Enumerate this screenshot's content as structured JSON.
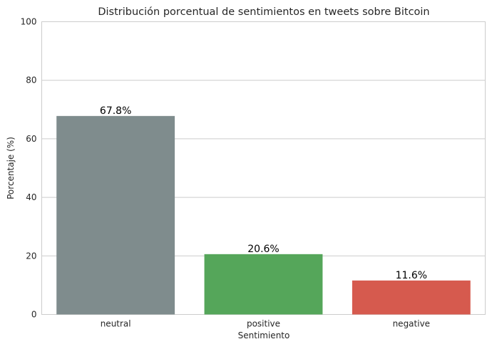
{
  "chart_data": {
    "type": "bar",
    "title": "Distribución porcentual de sentimientos en tweets sobre Bitcoin",
    "xlabel": "Sentimiento",
    "ylabel": "Porcentaje (%)",
    "categories": [
      "neutral",
      "positive",
      "negative"
    ],
    "values": [
      67.8,
      20.6,
      11.6
    ],
    "value_labels": [
      "67.8%",
      "20.6%",
      "11.6%"
    ],
    "colors": [
      "#7f8c8d",
      "#55a65a",
      "#d65a4e"
    ],
    "ylim": [
      0,
      100
    ],
    "yticks": [
      0,
      20,
      40,
      60,
      80,
      100
    ],
    "grid": true,
    "legend": "none"
  }
}
